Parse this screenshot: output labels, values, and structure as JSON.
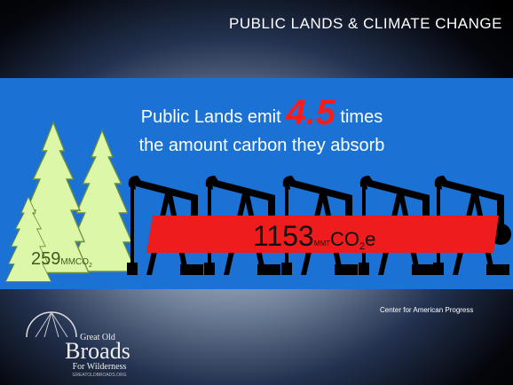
{
  "header": {
    "title": "PUBLIC LANDS & CLIMATE CHANGE"
  },
  "headline": {
    "line1_start": "Public Lands emit",
    "ratio": "4.5",
    "line1_end": "times",
    "line2": "the amount carbon they absorb"
  },
  "absorbed": {
    "value": "259",
    "unit": "MMCO",
    "subscript": "2"
  },
  "emitted": {
    "value": "1153",
    "unit": "MMT",
    "gas": "CO",
    "subscript": "2",
    "suffix": "e"
  },
  "source": "Center for American Progress",
  "logo": {
    "line1": "Great Old",
    "line2": "Broads",
    "line3": "For Wilderness",
    "line4": "GREATOLDBROADS.ORG"
  }
}
